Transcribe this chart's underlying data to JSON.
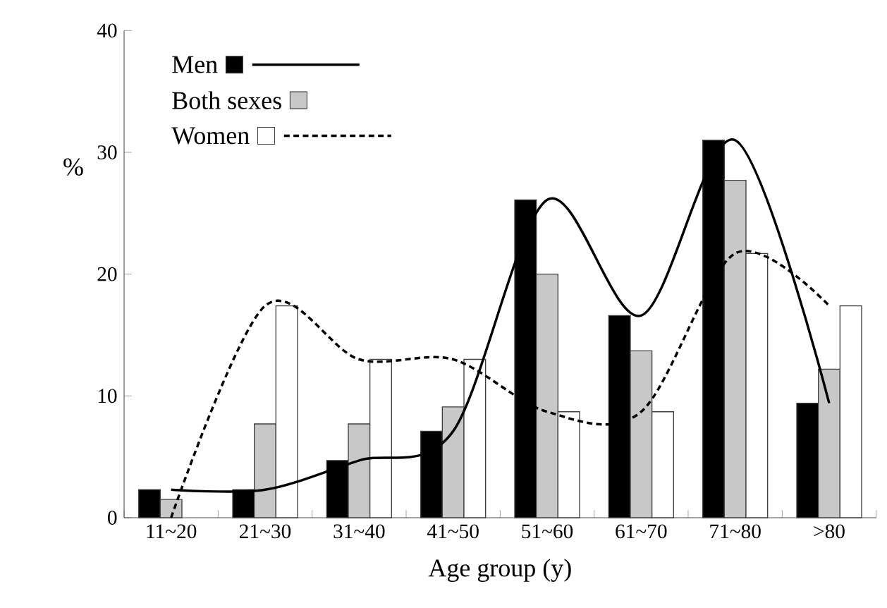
{
  "chart_data": {
    "type": "bar",
    "xlabel": "Age group (y)",
    "ylabel": "%",
    "categories": [
      "11~20",
      "21~30",
      "31~40",
      "41~50",
      "51~60",
      "61~70",
      "71~80",
      ">80"
    ],
    "series": [
      {
        "name": "Men",
        "color": "#000000",
        "values": [
          2.3,
          2.3,
          4.7,
          7.1,
          26.1,
          16.6,
          31.0,
          9.4
        ]
      },
      {
        "name": "Both sexes",
        "color": "#c8c8c8",
        "values": [
          1.5,
          7.7,
          7.7,
          9.1,
          20.0,
          13.7,
          27.7,
          12.2
        ]
      },
      {
        "name": "Women",
        "color": "#ffffff",
        "values": [
          null,
          17.4,
          13.0,
          13.0,
          8.7,
          8.7,
          21.7,
          17.4
        ]
      },
      {
        "type": "line",
        "color": "#000000",
        "line_style": "solid",
        "values": [
          2.3,
          2.3,
          4.7,
          7.1,
          26.1,
          16.6,
          31.0,
          9.4
        ]
      },
      {
        "type": "line",
        "color": "#000000",
        "line_style": "dashed",
        "values": [
          0,
          17.4,
          13.0,
          13.0,
          8.7,
          8.7,
          21.7,
          17.4
        ]
      }
    ],
    "ylim": [
      0,
      40
    ],
    "yticks": [
      0,
      10,
      20,
      30,
      40
    ],
    "legend": "top left"
  }
}
